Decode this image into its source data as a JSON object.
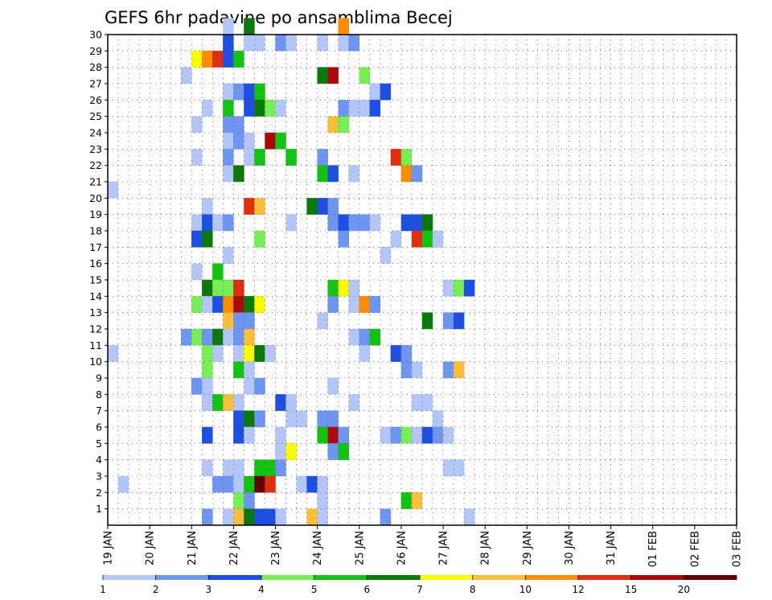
{
  "chart_data": {
    "type": "heatmap",
    "title": "GEFS 6hr padavine po ansamblima Becej",
    "xlabel": "",
    "ylabel": "",
    "x_ticks": [
      "19 JAN",
      "20 JAN",
      "21 JAN",
      "22 JAN",
      "23 JAN",
      "24 JAN",
      "25 JAN",
      "26 JAN",
      "27 JAN",
      "28 JAN",
      "29 JAN",
      "30 JAN",
      "31 JAN",
      "01 FEB",
      "02 FEB",
      "03 FEB"
    ],
    "y_ticks": [
      1,
      2,
      3,
      4,
      5,
      6,
      7,
      8,
      9,
      10,
      11,
      12,
      13,
      14,
      15,
      16,
      17,
      18,
      19,
      20,
      21,
      22,
      23,
      24,
      25,
      26,
      27,
      28,
      29,
      30
    ],
    "x_range_steps": [
      0,
      60
    ],
    "y_range_members": [
      0,
      30
    ],
    "grid": true,
    "legend_placement": "bottom",
    "legend": {
      "levels": [
        "1",
        "2",
        "3",
        "4",
        "5",
        "6",
        "7",
        "8",
        "10",
        "12",
        "15",
        "20"
      ],
      "colors": [
        "#b4c5f8",
        "#6e95ef",
        "#1f4fe0",
        "#77ee55",
        "#14c214",
        "#0a780a",
        "#fafa00",
        "#fbbe3a",
        "#fd8c00",
        "#e02e10",
        "#aa0a0a",
        "#640000"
      ]
    },
    "cells": [
      [
        11,
        30,
        1
      ],
      [
        13,
        30,
        6
      ],
      [
        22,
        30,
        9
      ],
      [
        11,
        29,
        3
      ],
      [
        13,
        29,
        1
      ],
      [
        14,
        29,
        1
      ],
      [
        16,
        29,
        2
      ],
      [
        17,
        29,
        1
      ],
      [
        20,
        29,
        1
      ],
      [
        22,
        29,
        1
      ],
      [
        23,
        29,
        2
      ],
      [
        8,
        28,
        7
      ],
      [
        9,
        28,
        9
      ],
      [
        10,
        28,
        10
      ],
      [
        11,
        28,
        3
      ],
      [
        12,
        28,
        5
      ],
      [
        7,
        27,
        1
      ],
      [
        20,
        27,
        6
      ],
      [
        21,
        27,
        11
      ],
      [
        24,
        27,
        4
      ],
      [
        11,
        26,
        1
      ],
      [
        12,
        26,
        2
      ],
      [
        13,
        26,
        3
      ],
      [
        14,
        26,
        5
      ],
      [
        25,
        26,
        1
      ],
      [
        26,
        26,
        3
      ],
      [
        9,
        25,
        1
      ],
      [
        11,
        25,
        5
      ],
      [
        13,
        25,
        3
      ],
      [
        14,
        25,
        6
      ],
      [
        15,
        25,
        4
      ],
      [
        16,
        25,
        1
      ],
      [
        22,
        25,
        2
      ],
      [
        23,
        25,
        1
      ],
      [
        24,
        25,
        1
      ],
      [
        25,
        25,
        3
      ],
      [
        8,
        24,
        1
      ],
      [
        11,
        24,
        2
      ],
      [
        12,
        24,
        2
      ],
      [
        21,
        24,
        8
      ],
      [
        22,
        24,
        4
      ],
      [
        11,
        23,
        1
      ],
      [
        12,
        23,
        2
      ],
      [
        13,
        23,
        1
      ],
      [
        15,
        23,
        11
      ],
      [
        16,
        23,
        5
      ],
      [
        8,
        22,
        1
      ],
      [
        11,
        22,
        2
      ],
      [
        13,
        22,
        1
      ],
      [
        14,
        22,
        5
      ],
      [
        17,
        22,
        5
      ],
      [
        20,
        22,
        2
      ],
      [
        27,
        22,
        10
      ],
      [
        28,
        22,
        4
      ],
      [
        11,
        21,
        1
      ],
      [
        12,
        21,
        6
      ],
      [
        20,
        21,
        5
      ],
      [
        21,
        21,
        3
      ],
      [
        23,
        21,
        1
      ],
      [
        28,
        21,
        9
      ],
      [
        29,
        21,
        2
      ],
      [
        0,
        20,
        1
      ],
      [
        9,
        19,
        1
      ],
      [
        13,
        19,
        10
      ],
      [
        14,
        19,
        8
      ],
      [
        19,
        19,
        6
      ],
      [
        20,
        19,
        3
      ],
      [
        21,
        19,
        2
      ],
      [
        8,
        18,
        1
      ],
      [
        9,
        18,
        3
      ],
      [
        10,
        18,
        1
      ],
      [
        11,
        18,
        2
      ],
      [
        17,
        18,
        1
      ],
      [
        21,
        18,
        2
      ],
      [
        22,
        18,
        3
      ],
      [
        23,
        18,
        2
      ],
      [
        24,
        18,
        2
      ],
      [
        25,
        18,
        1
      ],
      [
        28,
        18,
        3
      ],
      [
        29,
        18,
        3
      ],
      [
        30,
        18,
        6
      ],
      [
        8,
        17,
        3
      ],
      [
        9,
        17,
        6
      ],
      [
        14,
        17,
        4
      ],
      [
        22,
        17,
        2
      ],
      [
        27,
        17,
        1
      ],
      [
        29,
        17,
        10
      ],
      [
        30,
        17,
        5
      ],
      [
        31,
        17,
        1
      ],
      [
        11,
        16,
        1
      ],
      [
        26,
        16,
        1
      ],
      [
        8,
        15,
        1
      ],
      [
        10,
        15,
        5
      ],
      [
        9,
        14,
        6
      ],
      [
        10,
        14,
        4
      ],
      [
        11,
        14,
        4
      ],
      [
        12,
        14,
        10
      ],
      [
        21,
        14,
        5
      ],
      [
        22,
        14,
        7
      ],
      [
        23,
        14,
        1
      ],
      [
        32,
        14,
        1
      ],
      [
        33,
        14,
        4
      ],
      [
        34,
        14,
        3
      ],
      [
        8,
        13,
        4
      ],
      [
        9,
        13,
        1
      ],
      [
        10,
        13,
        3
      ],
      [
        11,
        13,
        9
      ],
      [
        12,
        13,
        11
      ],
      [
        13,
        13,
        6
      ],
      [
        14,
        13,
        7
      ],
      [
        21,
        13,
        2
      ],
      [
        23,
        13,
        1
      ],
      [
        24,
        13,
        9
      ],
      [
        25,
        13,
        2
      ],
      [
        11,
        12,
        8
      ],
      [
        12,
        12,
        2
      ],
      [
        13,
        12,
        2
      ],
      [
        20,
        12,
        1
      ],
      [
        30,
        12,
        6
      ],
      [
        32,
        12,
        2
      ],
      [
        33,
        12,
        3
      ],
      [
        7,
        11,
        2
      ],
      [
        8,
        11,
        4
      ],
      [
        9,
        11,
        2
      ],
      [
        10,
        11,
        6
      ],
      [
        11,
        11,
        1
      ],
      [
        12,
        11,
        2
      ],
      [
        13,
        11,
        8
      ],
      [
        23,
        11,
        1
      ],
      [
        24,
        11,
        2
      ],
      [
        25,
        11,
        5
      ],
      [
        0,
        10,
        1
      ],
      [
        9,
        10,
        4
      ],
      [
        10,
        10,
        1
      ],
      [
        12,
        10,
        1
      ],
      [
        13,
        10,
        7
      ],
      [
        14,
        10,
        6
      ],
      [
        15,
        10,
        1
      ],
      [
        24,
        10,
        1
      ],
      [
        27,
        10,
        3
      ],
      [
        28,
        10,
        2
      ],
      [
        9,
        9,
        4
      ],
      [
        12,
        9,
        5
      ],
      [
        13,
        9,
        1
      ],
      [
        28,
        9,
        2
      ],
      [
        29,
        9,
        1
      ],
      [
        32,
        9,
        2
      ],
      [
        33,
        9,
        8
      ],
      [
        8,
        8,
        2
      ],
      [
        9,
        8,
        1
      ],
      [
        13,
        8,
        1
      ],
      [
        14,
        8,
        2
      ],
      [
        21,
        8,
        1
      ],
      [
        9,
        7,
        1
      ],
      [
        10,
        7,
        5
      ],
      [
        11,
        7,
        8
      ],
      [
        12,
        7,
        1
      ],
      [
        16,
        7,
        3
      ],
      [
        17,
        7,
        1
      ],
      [
        23,
        7,
        1
      ],
      [
        29,
        7,
        1
      ],
      [
        30,
        7,
        1
      ],
      [
        12,
        6,
        3
      ],
      [
        13,
        6,
        6
      ],
      [
        14,
        6,
        2
      ],
      [
        17,
        6,
        1
      ],
      [
        18,
        6,
        1
      ],
      [
        20,
        6,
        2
      ],
      [
        21,
        6,
        2
      ],
      [
        31,
        6,
        1
      ],
      [
        9,
        5,
        3
      ],
      [
        12,
        5,
        3
      ],
      [
        13,
        5,
        1
      ],
      [
        16,
        5,
        1
      ],
      [
        20,
        5,
        5
      ],
      [
        21,
        5,
        11
      ],
      [
        22,
        5,
        2
      ],
      [
        26,
        5,
        1
      ],
      [
        27,
        5,
        2
      ],
      [
        28,
        5,
        4
      ],
      [
        29,
        5,
        1
      ],
      [
        30,
        5,
        3
      ],
      [
        31,
        5,
        2
      ],
      [
        32,
        5,
        1
      ],
      [
        16,
        4,
        1
      ],
      [
        17,
        4,
        7
      ],
      [
        21,
        4,
        2
      ],
      [
        22,
        4,
        5
      ],
      [
        9,
        3,
        1
      ],
      [
        11,
        3,
        1
      ],
      [
        12,
        3,
        1
      ],
      [
        14,
        3,
        5
      ],
      [
        15,
        3,
        5
      ],
      [
        16,
        3,
        2
      ],
      [
        32,
        3,
        1
      ],
      [
        33,
        3,
        1
      ],
      [
        1,
        2,
        1
      ],
      [
        10,
        2,
        2
      ],
      [
        11,
        2,
        2
      ],
      [
        12,
        2,
        1
      ],
      [
        13,
        2,
        5
      ],
      [
        14,
        2,
        12
      ],
      [
        15,
        2,
        10
      ],
      [
        18,
        2,
        1
      ],
      [
        19,
        2,
        3
      ],
      [
        20,
        2,
        1
      ],
      [
        12,
        1,
        4
      ],
      [
        13,
        1,
        2
      ],
      [
        20,
        1,
        1
      ],
      [
        28,
        1,
        5
      ],
      [
        29,
        1,
        8
      ],
      [
        9,
        0,
        2
      ],
      [
        11,
        0,
        1
      ],
      [
        12,
        0,
        8
      ],
      [
        13,
        0,
        6
      ],
      [
        14,
        0,
        3
      ],
      [
        15,
        0,
        3
      ],
      [
        16,
        0,
        1
      ],
      [
        19,
        0,
        8
      ],
      [
        20,
        0,
        1
      ],
      [
        26,
        0,
        2
      ],
      [
        34,
        0,
        1
      ]
    ]
  }
}
